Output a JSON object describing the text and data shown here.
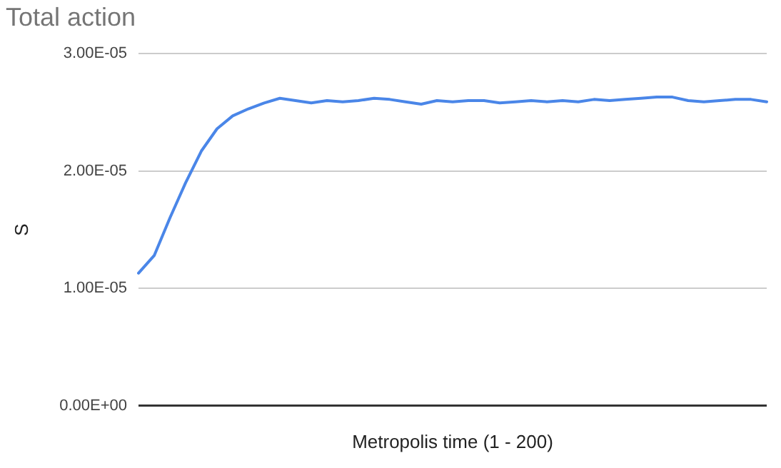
{
  "chart_data": {
    "type": "line",
    "title": "Total action",
    "xlabel": "Metropolis time (1 - 200)",
    "ylabel": "S",
    "categories": [
      null,
      null,
      null,
      null,
      null,
      null,
      null,
      null,
      null,
      null,
      null,
      null,
      null,
      null,
      null,
      null,
      null,
      null,
      null,
      null,
      null,
      null,
      null,
      null,
      null,
      null,
      null,
      null,
      null,
      null,
      null,
      null,
      null,
      null,
      null,
      null,
      null,
      null,
      null,
      null,
      null
    ],
    "series": [
      {
        "color": "#4a86e8",
        "values": [
          1.13e-05,
          1.28e-05,
          1.6e-05,
          1.9e-05,
          2.17e-05,
          2.36e-05,
          2.47e-05,
          2.53e-05,
          2.58e-05,
          2.62e-05,
          2.6e-05,
          2.58e-05,
          2.6e-05,
          2.59e-05,
          2.6e-05,
          2.62e-05,
          2.61e-05,
          2.59e-05,
          2.57e-05,
          2.6e-05,
          2.59e-05,
          2.6e-05,
          2.6e-05,
          2.58e-05,
          2.59e-05,
          2.6e-05,
          2.59e-05,
          2.6e-05,
          2.59e-05,
          2.61e-05,
          2.6e-05,
          2.61e-05,
          2.62e-05,
          2.63e-05,
          2.63e-05,
          2.6e-05,
          2.59e-05,
          2.6e-05,
          2.61e-05,
          2.61e-05,
          2.59e-05
        ]
      }
    ],
    "ylim": [
      0,
      3e-05
    ],
    "yticks": [
      {
        "value": 0,
        "label": "0.00E+00"
      },
      {
        "value": 1e-05,
        "label": "1.00E-05"
      },
      {
        "value": 2e-05,
        "label": "2.00E-05"
      },
      {
        "value": 3e-05,
        "label": "3.00E-05"
      }
    ],
    "grid": "y",
    "tick_labels": "y",
    "legend": false,
    "marker": "none",
    "line_style": "solid"
  }
}
